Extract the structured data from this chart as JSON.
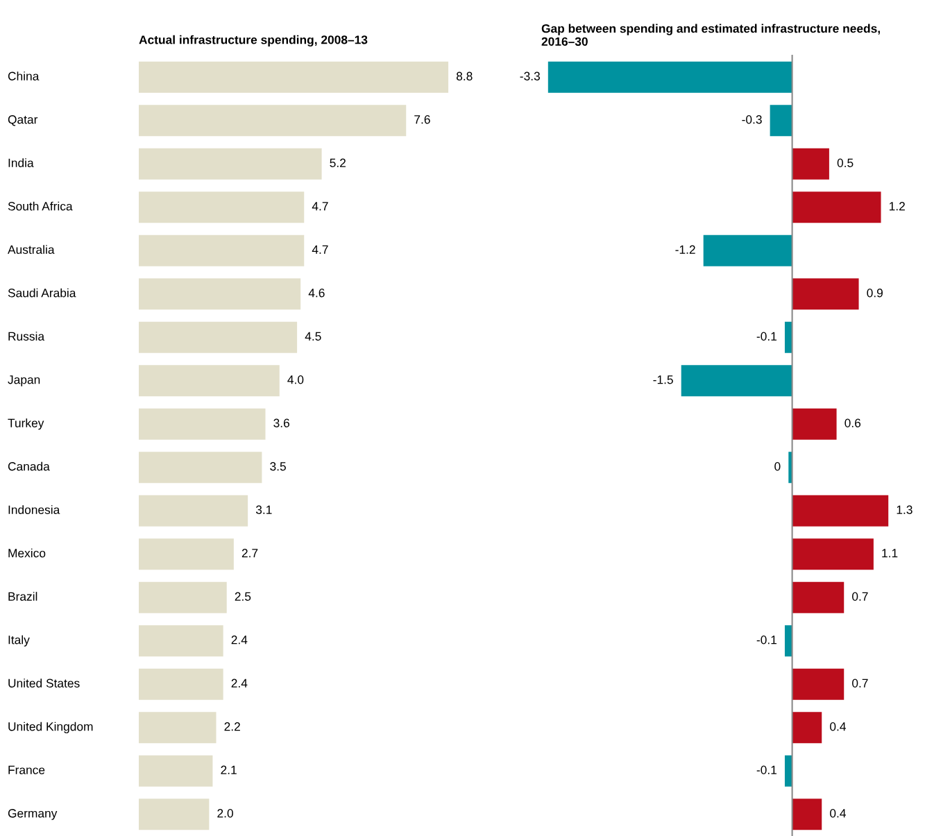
{
  "chart_data": [
    {
      "type": "bar",
      "orientation": "horizontal",
      "title": "Actual infrastructure spending, 2008–13",
      "tick_labels": "y",
      "grid": false,
      "categories": [
        "China",
        "Qatar",
        "India",
        "South Africa",
        "Australia",
        "Saudi Arabia",
        "Russia",
        "Japan",
        "Turkey",
        "Canada",
        "Indonesia",
        "Mexico",
        "Brazil",
        "Italy",
        "United States",
        "United Kingdom",
        "France",
        "Germany"
      ],
      "color": "#e2dfca",
      "values": [
        8.8,
        7.6,
        5.2,
        4.7,
        4.7,
        4.6,
        4.5,
        4.0,
        3.6,
        3.5,
        3.1,
        2.7,
        2.5,
        2.4,
        2.4,
        2.2,
        2.1,
        2.0
      ],
      "value_labels": [
        "8.8",
        "7.6",
        "5.2",
        "4.7",
        "4.7",
        "4.6",
        "4.5",
        "4.0",
        "3.6",
        "3.5",
        "3.1",
        "2.7",
        "2.5",
        "2.4",
        "2.4",
        "2.2",
        "2.1",
        "2.0"
      ]
    },
    {
      "type": "bar",
      "orientation": "horizontal",
      "title": "Gap between spending and estimated infrastructure needs, 2016–30",
      "tick_labels": false,
      "grid": false,
      "categories": [
        null,
        null,
        null,
        null,
        null,
        null,
        null,
        null,
        null,
        null,
        null,
        null,
        null,
        null,
        null,
        null,
        null,
        null
      ],
      "values": [
        -3.3,
        -0.3,
        0.5,
        1.2,
        -1.2,
        0.9,
        -0.1,
        -1.5,
        0.6,
        -0.05,
        1.3,
        1.1,
        0.7,
        -0.1,
        0.7,
        0.4,
        -0.1,
        0.4
      ],
      "colors": [
        "#00929f",
        "#00929f",
        "#bb0d1c",
        "#bb0d1c",
        "#00929f",
        "#bb0d1c",
        "#00929f",
        "#00929f",
        "#bb0d1c",
        "#00929f",
        "#bb0d1c",
        "#bb0d1c",
        "#bb0d1c",
        "#00929f",
        "#bb0d1c",
        "#bb0d1c",
        "#00929f",
        "#bb0d1c"
      ],
      "value_labels": [
        "-3.3",
        "-0.3",
        "0.5",
        "1.2",
        "-1.2",
        "0.9",
        "-0.1",
        "-1.5",
        "0.6",
        "0",
        "1.3",
        "1.1",
        "0.7",
        "-0.1",
        "0.7",
        "0.4",
        "-0.1",
        "0.4"
      ]
    }
  ]
}
